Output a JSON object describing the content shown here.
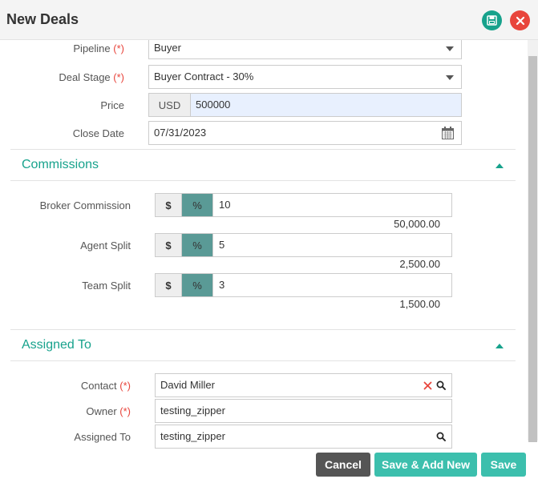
{
  "header": {
    "title": "New Deals"
  },
  "deal": {
    "pipeline_label": "Pipeline",
    "pipeline_value": "Buyer",
    "stage_label": "Deal Stage",
    "stage_value": "Buyer Contract - 30%",
    "price_label": "Price",
    "currency": "USD",
    "price_value": "500000",
    "close_label": "Close Date",
    "close_value": "07/31/2023",
    "required_mark": "(*)"
  },
  "commissions": {
    "title": "Commissions",
    "dollar": "$",
    "percent": "%",
    "rows": [
      {
        "label": "Broker Commission",
        "value": "10",
        "computed": "50,000.00"
      },
      {
        "label": "Agent Split",
        "value": "5",
        "computed": "2,500.00"
      },
      {
        "label": "Team Split",
        "value": "3",
        "computed": "1,500.00"
      }
    ]
  },
  "assigned": {
    "title": "Assigned To",
    "contact_label": "Contact",
    "contact_value": "David Miller",
    "owner_label": "Owner",
    "owner_value": "testing_zipper",
    "assigned_label": "Assigned To",
    "assigned_value": "testing_zipper"
  },
  "footer": {
    "cancel_label": "Cancel",
    "save_add_label": "Save & Add New",
    "save_label": "Save"
  },
  "colors": {
    "accent": "#17a28c",
    "danger": "#e8453c",
    "button": "#3cbfad",
    "cancel": "#555555",
    "active_addon": "#5a9a96"
  }
}
